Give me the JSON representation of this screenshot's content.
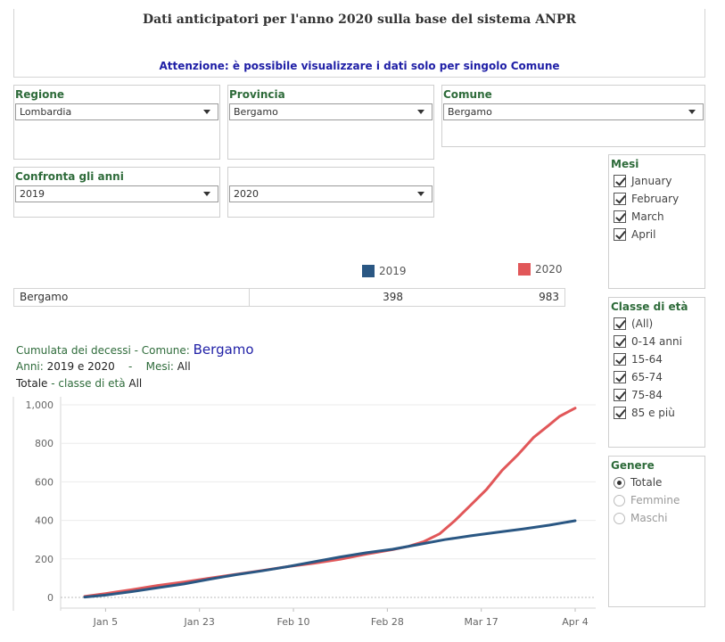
{
  "header": {
    "title": "Dati anticipatori per l'anno 2020 sulla base del sistema ANPR",
    "note": "Attenzione: è possibile visualizzare i dati solo per singolo Comune"
  },
  "filters": {
    "regione": {
      "label": "Regione",
      "value": "Lombardia"
    },
    "provincia": {
      "label": "Provincia",
      "value": "Bergamo"
    },
    "comune": {
      "label": "Comune",
      "value": "Bergamo"
    },
    "confronta": {
      "label": "Confronta gli anni",
      "value": "2019"
    },
    "anno2": {
      "value": "2020"
    }
  },
  "legend": [
    {
      "label": "2019",
      "color": "#2a5783"
    },
    {
      "label": "2020",
      "color": "#e15759"
    }
  ],
  "summary": {
    "comune": "Bergamo",
    "value_2019": "398",
    "value_2020": "983"
  },
  "description": {
    "line1_prefix": "Cumulata dei decessi - ",
    "line1_comune_label": "Comune: ",
    "line1_comune": "Bergamo",
    "line2_anni_label": "Anni: ",
    "line2_anni": "2019 e 2020",
    "line2_sep": "-",
    "line2_mesi_label": "Mesi: ",
    "line2_mesi": "All",
    "line3_totale": "Totale",
    "line3_classe": " - classe di età ",
    "line3_all": "All"
  },
  "mesi": {
    "title": "Mesi",
    "items": [
      "January",
      "February",
      "March",
      "April"
    ]
  },
  "classe": {
    "title": "Classe di età",
    "items": [
      "(All)",
      "0-14 anni",
      "15-64",
      "65-74",
      "75-84",
      "85 e più"
    ]
  },
  "genere": {
    "title": "Genere",
    "items": [
      {
        "label": "Totale",
        "selected": true
      },
      {
        "label": "Femmine",
        "selected": false
      },
      {
        "label": "Maschi",
        "selected": false
      }
    ]
  },
  "chart_data": {
    "type": "line",
    "x_ticks": [
      "Jan 5",
      "Jan 23",
      "Feb 10",
      "Feb 28",
      "Mar 17",
      "Apr 4"
    ],
    "y_ticks": [
      "0",
      "200",
      "400",
      "600",
      "800",
      "1,000"
    ],
    "ylim": [
      0,
      1000
    ],
    "x_range": [
      "Jan 1",
      "Apr 4"
    ],
    "grid": true,
    "series": [
      {
        "name": "2019",
        "color": "#2a5783",
        "points": [
          [
            "Jan 1",
            2
          ],
          [
            "Jan 5",
            12
          ],
          [
            "Jan 10",
            30
          ],
          [
            "Jan 15",
            50
          ],
          [
            "Jan 20",
            70
          ],
          [
            "Jan 25",
            95
          ],
          [
            "Jan 30",
            118
          ],
          [
            "Feb 4",
            138
          ],
          [
            "Feb 9",
            160
          ],
          [
            "Feb 14",
            185
          ],
          [
            "Feb 19",
            210
          ],
          [
            "Feb 24",
            232
          ],
          [
            "Feb 29",
            250
          ],
          [
            "Mar 5",
            275
          ],
          [
            "Mar 10",
            300
          ],
          [
            "Mar 15",
            320
          ],
          [
            "Mar 20",
            338
          ],
          [
            "Mar 25",
            355
          ],
          [
            "Mar 30",
            375
          ],
          [
            "Apr 4",
            398
          ]
        ]
      },
      {
        "name": "2020",
        "color": "#e15759",
        "points": [
          [
            "Jan 1",
            5
          ],
          [
            "Jan 5",
            20
          ],
          [
            "Jan 10",
            40
          ],
          [
            "Jan 15",
            62
          ],
          [
            "Jan 20",
            80
          ],
          [
            "Jan 25",
            100
          ],
          [
            "Jan 30",
            120
          ],
          [
            "Feb 4",
            140
          ],
          [
            "Feb 9",
            160
          ],
          [
            "Feb 14",
            178
          ],
          [
            "Feb 19",
            198
          ],
          [
            "Feb 24",
            225
          ],
          [
            "Feb 29",
            248
          ],
          [
            "Mar 3",
            265
          ],
          [
            "Mar 6",
            290
          ],
          [
            "Mar 9",
            330
          ],
          [
            "Mar 12",
            400
          ],
          [
            "Mar 15",
            480
          ],
          [
            "Mar 18",
            560
          ],
          [
            "Mar 21",
            660
          ],
          [
            "Mar 24",
            740
          ],
          [
            "Mar 27",
            830
          ],
          [
            "Mar 30",
            895
          ],
          [
            "Apr 1",
            940
          ],
          [
            "Apr 4",
            983
          ]
        ]
      }
    ]
  }
}
